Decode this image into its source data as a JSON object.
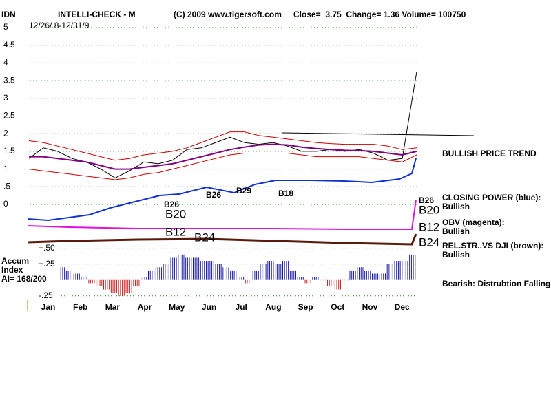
{
  "header": {
    "symbol": "IDN",
    "name": "INTELLI-CHECK - M",
    "copyright": "(C) 2009 www.tigersoft.com",
    "quote": "Close=  3.75  Change= 1.36 Volume= 100750",
    "date_range": "12/26/ 8-12/31/9"
  },
  "annotations": {
    "trend": "BULLISH PRICE TREND",
    "cp_label": "CLOSING POWER (blue):",
    "cp_value": "Bullish",
    "obv_label": "OBV (magenta):",
    "obv_value": "Bullish",
    "rs_label": "REL.STR..VS DJI (brown):",
    "rs_value": "Bullish",
    "accum_note": "Bearish: Distrubtion Falling.",
    "accum_title_1": "Accum",
    "accum_title_2": "Index",
    "ai": "AI= 168/200"
  },
  "signals": {
    "b26_a": "B26",
    "b20_a": "B20",
    "b12_a": "B12",
    "b24_a": "B24",
    "b26_b": "B26",
    "b29": "B29",
    "b18": "B18",
    "b26_r": "B26",
    "b20_r": "B20",
    "b12_r": "B12",
    "b24_r": "B24"
  },
  "chart_data": [
    {
      "type": "line",
      "months": [
        "Jan",
        "Feb",
        "Mar",
        "Apr",
        "May",
        "Jun",
        "Jul",
        "Aug",
        "Sep",
        "Oct",
        "Nov",
        "Dec"
      ],
      "ylim": [
        0,
        5
      ],
      "yticks": [
        5,
        4.5,
        4,
        3.5,
        3,
        2.5,
        2,
        1.5,
        1,
        {
          "value": 0.5,
          "label": ".5"
        },
        0
      ],
      "grid": true,
      "series": [
        {
          "name": "Price",
          "color": "#000000",
          "values": [
            1.3,
            1.6,
            1.5,
            1.3,
            1.2,
            1.0,
            0.75,
            0.95,
            1.2,
            1.15,
            1.25,
            1.55,
            1.6,
            1.75,
            1.9,
            1.75,
            1.7,
            1.75,
            1.65,
            1.5,
            1.5,
            1.55,
            1.5,
            1.55,
            1.45,
            1.25,
            1.3,
            3.75
          ]
        },
        {
          "name": "Moving Average",
          "color": "#800080",
          "values": [
            1.35,
            1.35,
            1.3,
            1.25,
            1.2,
            1.1,
            1.0,
            1.0,
            1.05,
            1.1,
            1.15,
            1.25,
            1.35,
            1.45,
            1.55,
            1.62,
            1.68,
            1.7,
            1.68,
            1.62,
            1.58,
            1.55,
            1.53,
            1.52,
            1.5,
            1.45,
            1.4,
            1.5
          ]
        },
        {
          "name": "Upper Band",
          "color": "#cc0000",
          "values": [
            1.8,
            1.75,
            1.65,
            1.55,
            1.45,
            1.35,
            1.25,
            1.3,
            1.4,
            1.45,
            1.5,
            1.6,
            1.75,
            1.9,
            2.05,
            2.05,
            1.95,
            1.9,
            1.85,
            1.8,
            1.75,
            1.72,
            1.7,
            1.7,
            1.7,
            1.65,
            1.55,
            1.6
          ]
        },
        {
          "name": "Lower Band",
          "color": "#cc0000",
          "values": [
            1.0,
            0.95,
            0.9,
            0.85,
            0.8,
            0.75,
            0.7,
            0.75,
            0.85,
            0.9,
            1.0,
            1.1,
            1.2,
            1.3,
            1.4,
            1.45,
            1.45,
            1.45,
            1.45,
            1.4,
            1.35,
            1.35,
            1.35,
            1.35,
            1.3,
            1.25,
            1.2,
            1.4
          ]
        }
      ]
    },
    {
      "type": "bar",
      "ylim": [
        -0.35,
        0.55
      ],
      "yticks": [
        {
          "value": 0.5,
          "label": "+.50"
        },
        {
          "value": 0.25,
          "label": "+.25"
        },
        {
          "value": -0.25,
          "label": "-.25"
        }
      ],
      "positive_color": "#1a1aa0",
      "negative_color": "#cc2222",
      "values": [
        0.2,
        0.15,
        0.1,
        0.05,
        -0.05,
        -0.1,
        -0.15,
        -0.2,
        -0.25,
        -0.2,
        -0.1,
        0.05,
        0.15,
        0.2,
        0.25,
        0.35,
        0.4,
        0.35,
        0.35,
        0.3,
        0.3,
        0.25,
        0.2,
        0.15,
        0.05,
        -0.05,
        0.15,
        0.25,
        0.3,
        0.25,
        0.3,
        0.15,
        0.05,
        -0.05,
        0.05,
        0.0,
        -0.1,
        -0.15,
        0.0,
        0.15,
        0.2,
        0.15,
        0.1,
        0.1,
        0.25,
        0.3,
        0.3,
        0.4
      ]
    }
  ]
}
